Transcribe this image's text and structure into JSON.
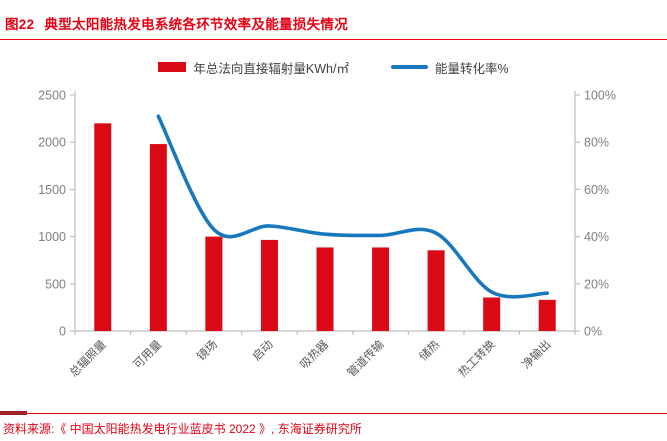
{
  "figure": {
    "number": "图22",
    "title": "典型太阳能热发电系统各环节效率及能量损失情况",
    "source": "资料来源:《 中国太阳能热发电行业蓝皮书 2022 》, 东海证券研究所"
  },
  "legend": [
    {
      "label": "年总法向直接辐射量KWh/㎡",
      "marker": "bar-swatch",
      "color": "#d90916"
    },
    {
      "label": "能量转化率%",
      "marker": "line-swatch",
      "color": "#1878be"
    }
  ],
  "colors": {
    "title_red": "#e60012",
    "bar_red": "#d90916",
    "line_blue": "#1878be",
    "axis_gray": "#bfbfbf",
    "tick_label_gray": "#808080",
    "category_label_gray": "#595959"
  },
  "chart_data": {
    "type": "bar",
    "categories": [
      "总辐照量",
      "可用量",
      "镜场",
      "启动",
      "吸热器",
      "管道传输",
      "储热",
      "热工转换",
      "净输出"
    ],
    "series": [
      {
        "name": "年总法向直接辐射量KWh/㎡",
        "type": "bar",
        "axis": "left",
        "color": "#d90916",
        "values": [
          2200,
          1980,
          1000,
          965,
          885,
          885,
          855,
          355,
          330
        ]
      },
      {
        "name": "能量转化率%",
        "type": "line",
        "axis": "right",
        "color": "#1878be",
        "values": [
          null,
          91,
          43,
          44.5,
          41,
          40.5,
          41.5,
          16.5,
          16
        ]
      }
    ],
    "title": "典型太阳能热发电系统各环节效率及能量损失情况",
    "xlabel": "",
    "ylabel_left": "年总法向直接辐射量KWh/㎡",
    "ylabel_right": "能量转化率%",
    "left_axis": {
      "min": 0,
      "max": 2500,
      "step": 500,
      "ticks": [
        "2500",
        "2000",
        "1500",
        "1000",
        "500",
        "0"
      ]
    },
    "right_axis": {
      "min": 0,
      "max": 100,
      "step": 20,
      "ticks": [
        "100%",
        "80%",
        "60%",
        "40%",
        "20%",
        "0%"
      ]
    },
    "grid": false,
    "legend_position": "top-center"
  }
}
